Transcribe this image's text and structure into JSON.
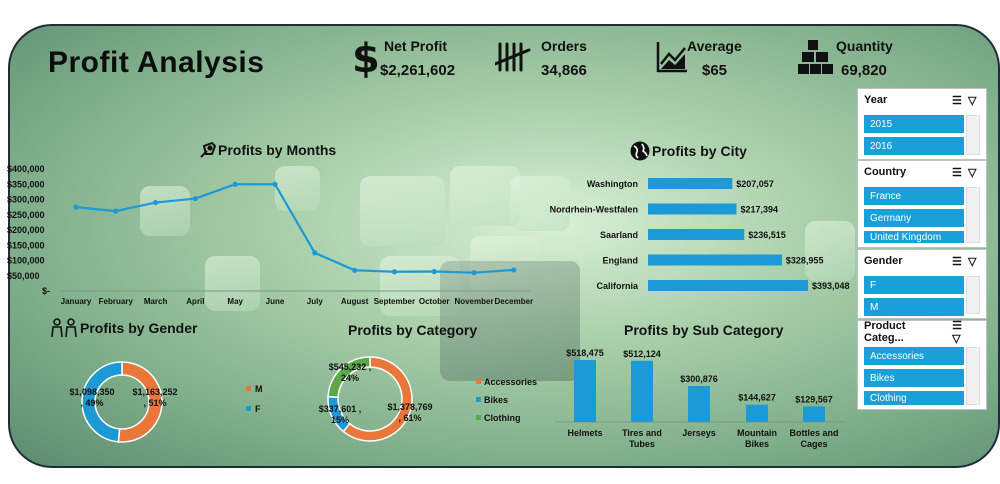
{
  "title": "Profit Analysis",
  "kpis": {
    "net_profit": {
      "label": "Net Profit",
      "value": "$2,261,602"
    },
    "orders": {
      "label": "Orders",
      "value": "34,866"
    },
    "average": {
      "label": "Average",
      "value": "$65"
    },
    "quantity": {
      "label": "Quantity",
      "value": "69,820"
    }
  },
  "sections": {
    "months": "Profits by Months",
    "city": "Profits by City",
    "gender": "Profits by Gender",
    "category": "Profits by Category",
    "subcategory": "Profits by Sub Category"
  },
  "chart_data": [
    {
      "type": "line",
      "title": "Profits by Months",
      "categories": [
        "January",
        "February",
        "March",
        "April",
        "May",
        "June",
        "July",
        "August",
        "September",
        "October",
        "November",
        "December"
      ],
      "values": [
        275000,
        262000,
        290000,
        303000,
        350000,
        350000,
        125000,
        68000,
        63000,
        64000,
        60000,
        69000
      ],
      "yticks": [
        "$400,000",
        "$350,000",
        "$300,000",
        "$250,000",
        "$200,000",
        "$150,000",
        "$100,000",
        "$50,000",
        "$-"
      ],
      "ylim": [
        0,
        400000
      ],
      "color": "#1b9ad6"
    },
    {
      "type": "bar",
      "title": "Profits by City",
      "categories": [
        "Washington",
        "Nordrhein-Westfalen",
        "Saarland",
        "England",
        "California"
      ],
      "values": [
        207057,
        217394,
        236515,
        328955,
        393048
      ],
      "labels": [
        "$207,057",
        "$217,394",
        "$236,515",
        "$328,955",
        "$393,048"
      ],
      "color": "#1b9ad6"
    },
    {
      "type": "pie",
      "title": "Profits by Gender",
      "categories": [
        "M",
        "F"
      ],
      "values": [
        1163252,
        1098350
      ],
      "labels": [
        "$1,163,252\n, 51%",
        "$1,098,350\n, 49%"
      ],
      "colors": [
        "#e9773a",
        "#1b9ad6"
      ]
    },
    {
      "type": "pie",
      "title": "Profits by Category",
      "categories": [
        "Accessories",
        "Bikes",
        "Clothing"
      ],
      "values": [
        1378769,
        337601,
        545232
      ],
      "labels": [
        "$1,378,769\n, 61%",
        "$337,601 ,\n15%",
        "$545,232 ,\n24%"
      ],
      "colors": [
        "#e9773a",
        "#1b9ad6",
        "#5aa84a"
      ]
    },
    {
      "type": "bar",
      "title": "Profits by Sub Category",
      "categories": [
        "Helmets",
        "Tires and\nTubes",
        "Jerseys",
        "Mountain\nBikes",
        "Bottles and\nCages"
      ],
      "values": [
        518475,
        512124,
        300876,
        144627,
        129567
      ],
      "labels": [
        "$518,475",
        "$512,124",
        "$300,876",
        "$144,627",
        "$129,567"
      ],
      "color": "#1b9ad6"
    }
  ],
  "slicers": {
    "year": {
      "label": "Year",
      "items": [
        "2015",
        "2016"
      ]
    },
    "country": {
      "label": "Country",
      "items": [
        "France",
        "Germany",
        "United Kingdom"
      ]
    },
    "gender": {
      "label": "Gender",
      "items": [
        "F",
        "M"
      ]
    },
    "category": {
      "label": "Product Categ...",
      "items": [
        "Accessories",
        "Bikes",
        "Clothing"
      ]
    }
  }
}
